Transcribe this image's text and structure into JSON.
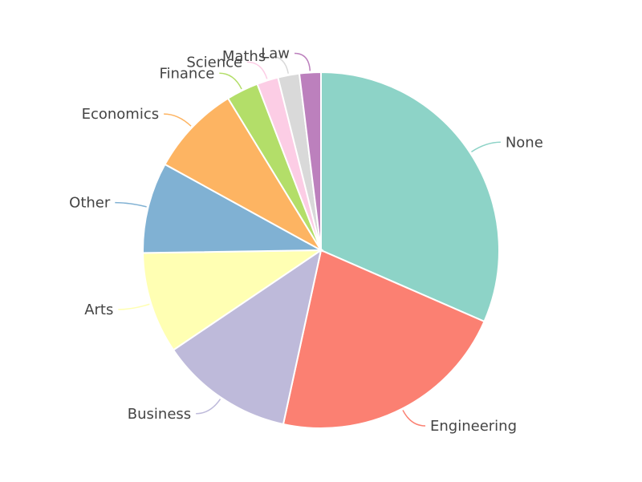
{
  "chart_data": {
    "type": "pie",
    "title": "",
    "categories": [
      "None",
      "Engineering",
      "Business",
      "Arts",
      "Other",
      "Economics",
      "Finance",
      "Science",
      "Maths",
      "Law"
    ],
    "values": [
      32.5,
      22.5,
      12.5,
      9.5,
      8.5,
      8.5,
      3.0,
      2.0,
      2.0,
      2.0
    ],
    "colors": [
      "#8dd3c7",
      "#fb8072",
      "#bebada",
      "#ffffb3",
      "#80b1d3",
      "#fdb462",
      "#b3de69",
      "#fccde5",
      "#d9d9d9",
      "#bc80bd"
    ],
    "legend": "none",
    "labels_position": "outside-with-leaders"
  }
}
